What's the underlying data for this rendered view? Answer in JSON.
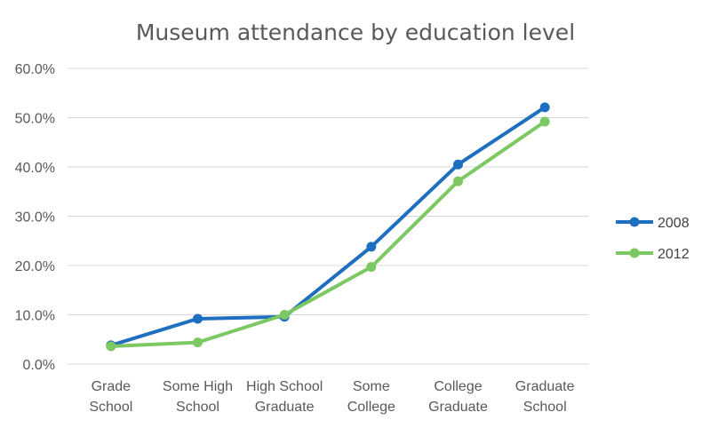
{
  "chart_data": {
    "type": "line",
    "title": "Museum attendance by education level",
    "xlabel": "",
    "ylabel": "",
    "categories": [
      [
        "Grade",
        "School"
      ],
      [
        "Some High",
        "School"
      ],
      [
        "High School",
        "Graduate"
      ],
      [
        "Some",
        "College"
      ],
      [
        "College",
        "Graduate"
      ],
      [
        "Graduate",
        "School"
      ]
    ],
    "ylim": [
      0,
      60
    ],
    "yticks": [
      "0.0%",
      "10.0%",
      "20.0%",
      "30.0%",
      "40.0%",
      "50.0%",
      "60.0%"
    ],
    "grid": true,
    "legend_position": "right",
    "series": [
      {
        "name": "2008",
        "color": "#1f6fc0",
        "values": [
          3.8,
          9.2,
          9.6,
          23.8,
          40.5,
          52.1
        ]
      },
      {
        "name": "2012",
        "color": "#7cc862",
        "values": [
          3.6,
          4.4,
          10.0,
          19.7,
          37.1,
          49.2
        ]
      }
    ]
  }
}
